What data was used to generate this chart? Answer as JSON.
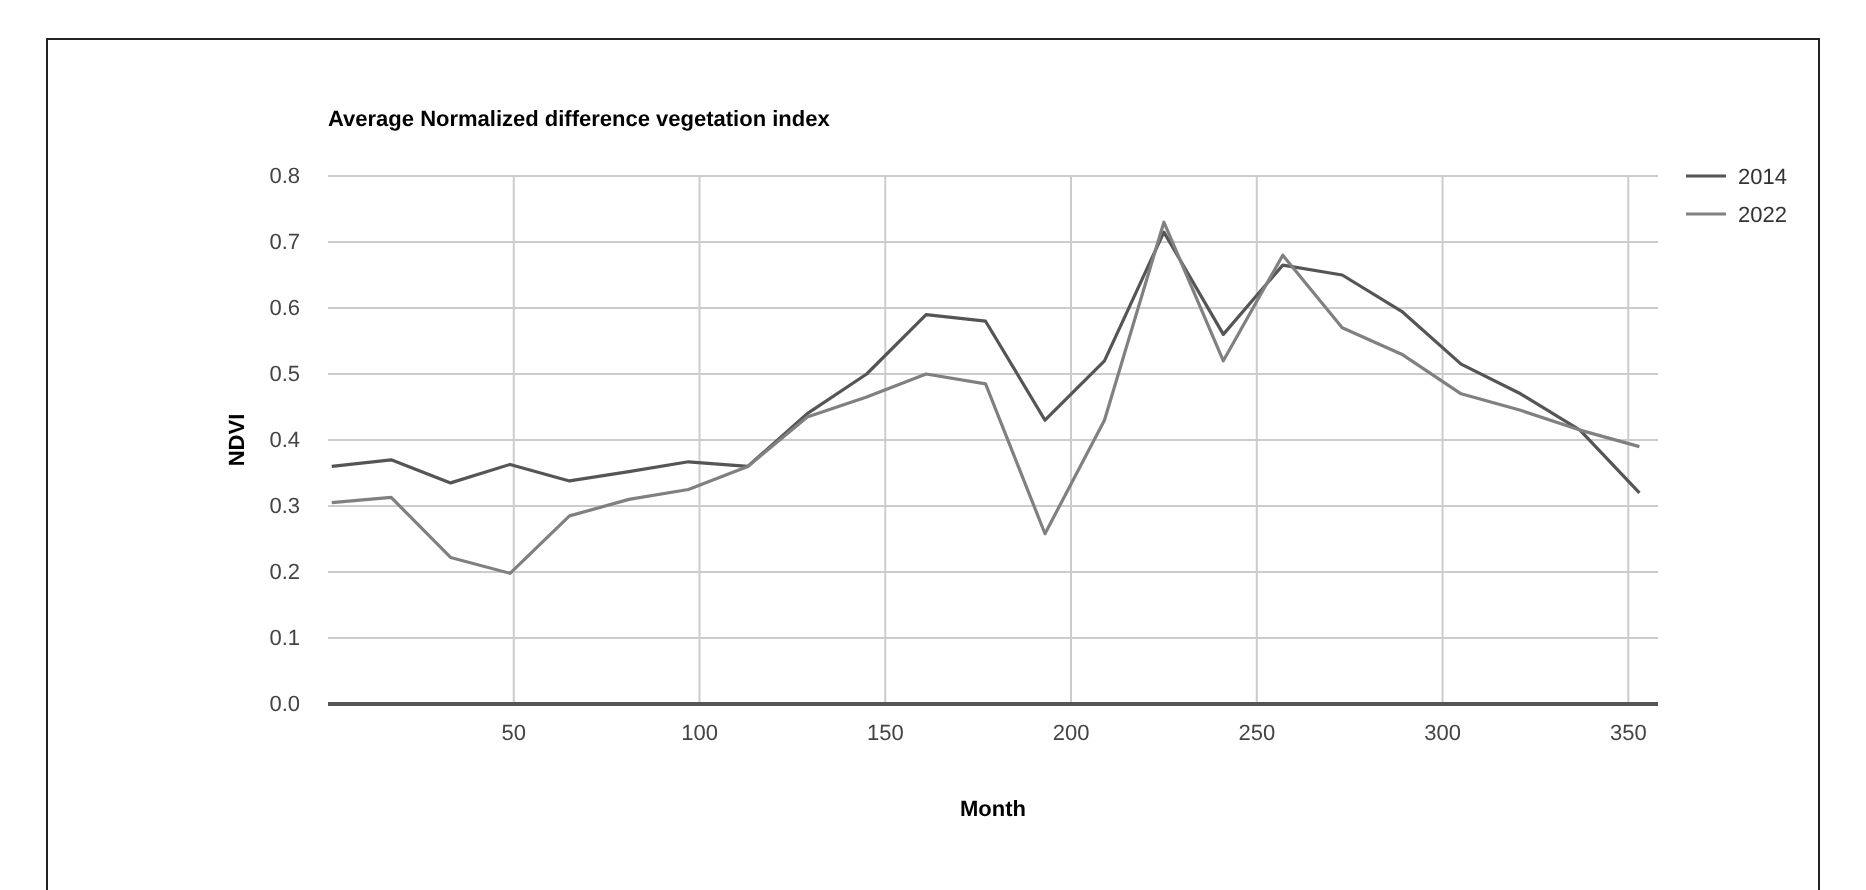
{
  "chart_data": {
    "type": "line",
    "title": "Average Normalized difference vegetation index",
    "xlabel": "Month",
    "ylabel": "NDVI",
    "x": [
      1,
      17,
      33,
      49,
      65,
      81,
      97,
      113,
      129,
      145,
      161,
      177,
      193,
      209,
      225,
      241,
      257,
      273,
      289,
      305,
      321,
      337,
      353
    ],
    "series": [
      {
        "name": "2014",
        "color": "#555555",
        "values": [
          0.36,
          0.37,
          0.335,
          0.363,
          0.338,
          0.352,
          0.367,
          0.36,
          0.44,
          0.5,
          0.59,
          0.58,
          0.43,
          0.52,
          0.715,
          0.56,
          0.665,
          0.65,
          0.595,
          0.515,
          0.47,
          0.415,
          0.32
        ]
      },
      {
        "name": "2022",
        "color": "#808080",
        "values": [
          0.305,
          0.313,
          0.222,
          0.198,
          0.285,
          0.31,
          0.325,
          0.36,
          0.435,
          0.465,
          0.5,
          0.485,
          0.258,
          0.43,
          0.73,
          0.52,
          0.68,
          0.57,
          0.53,
          0.47,
          0.445,
          0.415,
          0.39
        ]
      }
    ],
    "xlim": [
      0,
      358
    ],
    "xticks": [
      50,
      100,
      150,
      200,
      250,
      300,
      350
    ],
    "ylim": [
      0,
      0.8
    ],
    "yticks": [
      {
        "value": 0,
        "label": "0.0"
      },
      0.1,
      0.2,
      0.3,
      0.4,
      0.5,
      0.6,
      0.7,
      0.8
    ],
    "grid": true,
    "legend": "top right",
    "marker": "none",
    "line_style": "solid"
  }
}
